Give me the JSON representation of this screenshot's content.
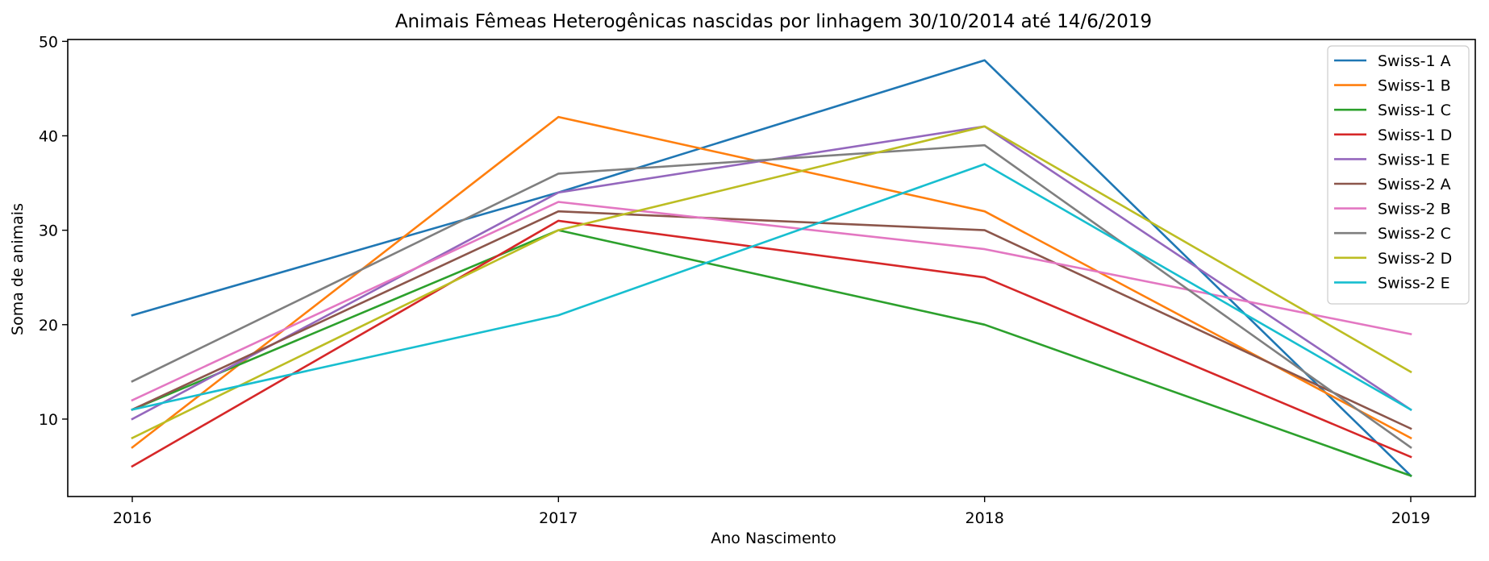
{
  "chart_data": {
    "type": "line",
    "title": "Animais Fêmeas Heterogênicas nascidas por linhagem 30/10/2014 até 14/6/2019",
    "xlabel": "Ano Nascimento",
    "ylabel": "Soma de animais",
    "categories": [
      "2016",
      "2017",
      "2018",
      "2019"
    ],
    "yticks": [
      10,
      20,
      30,
      40,
      50
    ],
    "ylim": [
      1.8,
      50.2
    ],
    "grid": false,
    "legend_position": "top-right",
    "series": [
      {
        "name": "Swiss-1 A",
        "color": "#1f77b4",
        "values": [
          21,
          34,
          48,
          4
        ]
      },
      {
        "name": "Swiss-1 B",
        "color": "#ff7f0e",
        "values": [
          7,
          42,
          32,
          8
        ]
      },
      {
        "name": "Swiss-1 C",
        "color": "#2ca02c",
        "values": [
          11,
          30,
          20,
          4
        ]
      },
      {
        "name": "Swiss-1 D",
        "color": "#d62728",
        "values": [
          5,
          31,
          25,
          6
        ]
      },
      {
        "name": "Swiss-1 E",
        "color": "#9467bd",
        "values": [
          10,
          34,
          41,
          11
        ]
      },
      {
        "name": "Swiss-2 A",
        "color": "#8c564b",
        "values": [
          11,
          32,
          30,
          9
        ]
      },
      {
        "name": "Swiss-2 B",
        "color": "#e377c2",
        "values": [
          12,
          33,
          28,
          19
        ]
      },
      {
        "name": "Swiss-2 C",
        "color": "#7f7f7f",
        "values": [
          14,
          36,
          39,
          7
        ]
      },
      {
        "name": "Swiss-2 D",
        "color": "#bcbd22",
        "values": [
          8,
          30,
          41,
          15
        ]
      },
      {
        "name": "Swiss-2 E",
        "color": "#17becf",
        "values": [
          11,
          21,
          37,
          11
        ]
      }
    ]
  }
}
